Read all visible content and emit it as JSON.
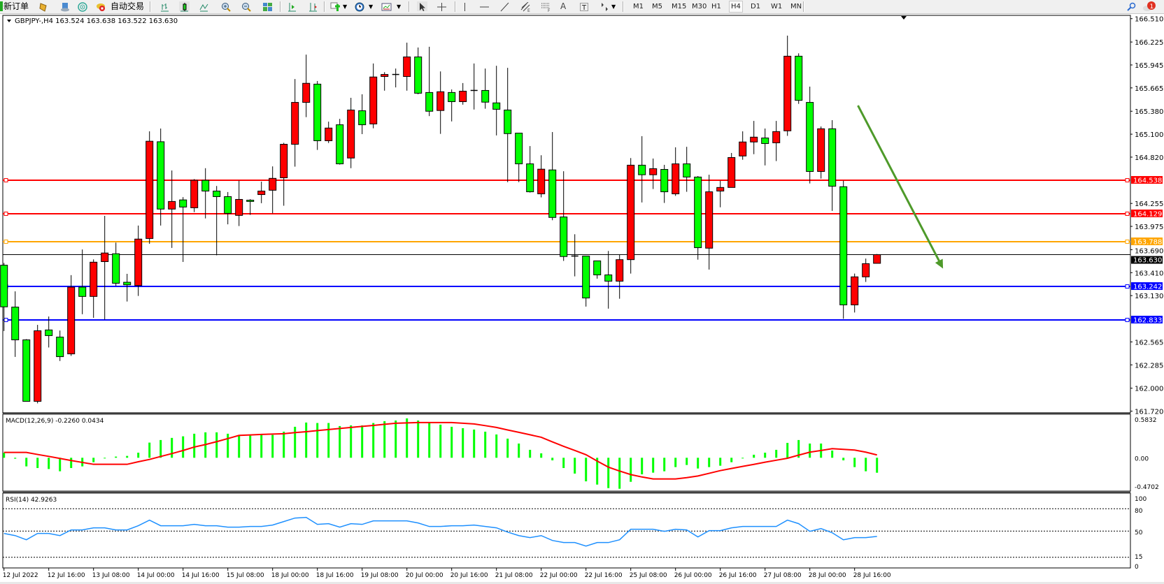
{
  "toolbar": {
    "new_order": "新订单",
    "auto_trading": "自动交易",
    "icons": [
      "market-watch-icon",
      "data-window-icon",
      "navigator-icon",
      "auto-trading-icon",
      "bar-chart-icon",
      "candlestick-icon",
      "line-chart-icon",
      "zoom-in-icon",
      "zoom-out-icon",
      "tile-windows-icon",
      "auto-scroll-icon",
      "chart-shift-icon",
      "indicators-icon",
      "periods-icon",
      "templates-icon",
      "cursor-icon",
      "crosshair-icon",
      "vertical-line-icon",
      "horizontal-line-icon",
      "trendline-icon",
      "channel-icon",
      "fibonacci-icon",
      "text-icon",
      "label-icon",
      "arrows-icon",
      "search-icon",
      "notification-icon"
    ],
    "periods": [
      "M1",
      "M5",
      "M15",
      "M30",
      "H1",
      "H4",
      "D1",
      "W1",
      "MN"
    ],
    "selected_period": "H4",
    "notification_count": "1"
  },
  "chart_data": {
    "type": "candlestick",
    "symbol_header": "GBPJPY-,H4  163.524 163.638 163.522 163.630",
    "ylim": [
      161.72,
      166.51
    ],
    "y_ticks": [
      "166.510",
      "166.225",
      "165.945",
      "165.665",
      "165.380",
      "165.100",
      "164.820",
      "164.255",
      "163.975",
      "163.690",
      "163.410",
      "163.130",
      "162.565",
      "162.285",
      "162.000",
      "161.720"
    ],
    "x_ticks": [
      "12 Jul 2022",
      "12 Jul 16:00",
      "13 Jul 08:00",
      "14 Jul 00:00",
      "14 Jul 16:00",
      "15 Jul 08:00",
      "18 Jul 00:00",
      "18 Jul 16:00",
      "19 Jul 08:00",
      "20 Jul 00:00",
      "20 Jul 16:00",
      "21 Jul 08:00",
      "22 Jul 00:00",
      "22 Jul 16:00",
      "25 Jul 08:00",
      "26 Jul 00:00",
      "26 Jul 16:00",
      "27 Jul 08:00",
      "28 Jul 00:00",
      "28 Jul 16:00"
    ],
    "candle_fields": [
      "open",
      "high",
      "low",
      "close"
    ],
    "candles": [
      [
        163.501,
        163.529,
        162.698,
        162.993
      ],
      [
        162.99,
        163.182,
        162.382,
        162.59
      ],
      [
        162.59,
        162.599,
        161.84,
        161.84
      ],
      [
        161.84,
        162.773,
        161.815,
        162.701
      ],
      [
        162.711,
        162.875,
        162.497,
        162.642
      ],
      [
        162.624,
        162.704,
        162.332,
        162.385
      ],
      [
        162.419,
        163.38,
        162.394,
        163.234
      ],
      [
        163.234,
        163.693,
        162.903,
        163.12
      ],
      [
        163.12,
        163.572,
        162.859,
        163.538
      ],
      [
        163.545,
        164.103,
        162.838,
        163.65
      ],
      [
        163.641,
        163.777,
        163.25,
        163.281
      ],
      [
        163.293,
        163.396,
        163.058,
        163.262
      ],
      [
        163.253,
        163.985,
        163.126,
        163.82
      ],
      [
        163.827,
        165.135,
        163.762,
        165.014
      ],
      [
        165.008,
        165.169,
        163.985,
        164.186
      ],
      [
        164.186,
        164.657,
        163.712,
        164.279
      ],
      [
        164.298,
        164.332,
        163.541,
        164.211
      ],
      [
        164.202,
        164.552,
        164.149,
        164.537
      ],
      [
        164.537,
        164.685,
        164.072,
        164.406
      ],
      [
        164.406,
        164.468,
        163.622,
        164.338
      ],
      [
        164.338,
        164.394,
        164.0,
        164.134
      ],
      [
        164.109,
        164.533,
        163.979,
        164.304
      ],
      [
        164.295,
        164.307,
        164.115,
        164.279
      ],
      [
        164.363,
        164.521,
        164.258,
        164.406
      ],
      [
        164.416,
        164.707,
        164.134,
        164.561
      ],
      [
        164.568,
        164.995,
        164.227,
        164.977
      ],
      [
        164.977,
        165.773,
        164.704,
        165.488
      ],
      [
        165.488,
        166.071,
        165.308,
        165.721
      ],
      [
        165.711,
        165.749,
        164.908,
        165.02
      ],
      [
        165.02,
        165.253,
        164.992,
        165.175
      ],
      [
        165.215,
        165.287,
        164.729,
        164.738
      ],
      [
        164.809,
        165.544,
        164.685,
        165.395
      ],
      [
        165.386,
        165.587,
        165.101,
        165.215
      ],
      [
        165.225,
        165.963,
        165.172,
        165.798
      ],
      [
        165.804,
        165.857,
        165.631,
        165.829
      ],
      [
        165.829,
        165.901,
        165.671,
        165.829
      ],
      [
        165.804,
        166.217,
        165.631,
        166.043
      ],
      [
        166.043,
        166.158,
        165.587,
        165.6
      ],
      [
        165.609,
        166.167,
        165.321,
        165.38
      ],
      [
        165.389,
        165.866,
        165.104,
        165.618
      ],
      [
        165.609,
        165.646,
        165.256,
        165.497
      ],
      [
        165.497,
        165.724,
        165.46,
        165.625
      ],
      [
        165.634,
        165.963,
        165.401,
        165.634
      ],
      [
        165.634,
        165.901,
        165.411,
        165.491
      ],
      [
        165.482,
        165.935,
        165.085,
        165.404
      ],
      [
        165.395,
        165.91,
        164.515,
        165.107
      ],
      [
        165.113,
        165.113,
        164.515,
        164.738
      ],
      [
        164.738,
        164.955,
        164.388,
        164.397
      ],
      [
        164.372,
        164.843,
        164.329,
        164.673
      ],
      [
        164.664,
        165.126,
        164.05,
        164.084
      ],
      [
        164.09,
        164.648,
        163.554,
        163.607
      ],
      [
        163.613,
        163.879,
        163.365,
        163.613
      ],
      [
        163.613,
        163.613,
        162.996,
        163.101
      ],
      [
        163.554,
        163.554,
        163.337,
        163.383
      ],
      [
        163.383,
        163.675,
        162.971,
        163.306
      ],
      [
        163.306,
        163.628,
        163.092,
        163.569
      ],
      [
        163.569,
        164.809,
        163.399,
        164.722
      ],
      [
        164.722,
        165.076,
        164.267,
        164.605
      ],
      [
        164.605,
        164.803,
        164.431,
        164.679
      ],
      [
        164.67,
        164.726,
        164.261,
        164.397
      ],
      [
        164.372,
        164.94,
        164.347,
        164.738
      ],
      [
        164.738,
        164.946,
        164.397,
        164.577
      ],
      [
        164.577,
        164.589,
        163.569,
        163.715
      ],
      [
        163.709,
        164.605,
        163.448,
        164.397
      ],
      [
        164.406,
        164.533,
        164.208,
        164.45
      ],
      [
        164.45,
        164.871,
        164.45,
        164.815
      ],
      [
        164.834,
        165.135,
        164.788,
        165.005
      ],
      [
        165.005,
        165.262,
        164.856,
        165.064
      ],
      [
        165.054,
        165.169,
        164.719,
        164.986
      ],
      [
        164.995,
        165.262,
        164.772,
        165.132
      ],
      [
        165.141,
        166.303,
        165.079,
        166.052
      ],
      [
        166.052,
        166.087,
        165.47,
        165.513
      ],
      [
        165.488,
        165.68,
        164.499,
        164.645
      ],
      [
        164.645,
        165.194,
        164.558,
        165.166
      ],
      [
        165.166,
        165.271,
        164.164,
        164.465
      ],
      [
        164.459,
        164.533,
        162.847,
        163.017
      ],
      [
        163.017,
        163.399,
        162.924,
        163.359
      ],
      [
        163.359,
        163.582,
        163.297,
        163.52
      ],
      [
        163.524,
        163.638,
        163.522,
        163.63
      ]
    ],
    "bull_color": "#ff0000",
    "bear_color": "#00ff00",
    "price_lines": [
      {
        "price": "164.538",
        "color": "#ff0000"
      },
      {
        "price": "164.129",
        "color": "#ff0000"
      },
      {
        "price": "163.788",
        "color": "#ffa500"
      },
      {
        "price": "163.242",
        "color": "#0000ff"
      },
      {
        "price": "162.833",
        "color": "#0000ff"
      }
    ],
    "bid_line": {
      "price": "163.630",
      "color": "#000000"
    },
    "arrow": {
      "from_price": 165.45,
      "to_price": 163.46,
      "color": "#4e9a2a"
    },
    "macd": {
      "label": "MACD(12,26,9) -0.2260 0.0434",
      "y_ticks": [
        "0.5832",
        "0.00",
        "-0.4702"
      ],
      "ylim": [
        -0.4702,
        0.5832
      ],
      "hist_color": "#00ff00",
      "signal_color": "#ff0000",
      "histogram": [
        0.074,
        -0.014,
        -0.13,
        -0.155,
        -0.17,
        -0.204,
        -0.155,
        -0.13,
        -0.067,
        -0.005,
        0.018,
        0.028,
        0.077,
        0.229,
        0.268,
        0.3,
        0.324,
        0.363,
        0.384,
        0.384,
        0.363,
        0.345,
        0.334,
        0.345,
        0.345,
        0.394,
        0.468,
        0.532,
        0.525,
        0.525,
        0.479,
        0.489,
        0.489,
        0.525,
        0.553,
        0.563,
        0.595,
        0.563,
        0.535,
        0.5,
        0.468,
        0.447,
        0.426,
        0.394,
        0.352,
        0.289,
        0.215,
        0.12,
        0.067,
        -0.039,
        -0.155,
        -0.239,
        -0.356,
        -0.405,
        -0.458,
        -0.468,
        -0.363,
        -0.25,
        -0.225,
        -0.204,
        -0.141,
        -0.109,
        -0.162,
        -0.141,
        -0.12,
        -0.067,
        -0.004,
        0.046,
        0.077,
        0.12,
        0.225,
        0.268,
        0.215,
        0.215,
        0.109,
        -0.039,
        -0.141,
        -0.204,
        -0.226
      ],
      "signal": [
        0.081,
        0.081,
        0.081,
        0.05,
        0.021,
        -0.01,
        -0.042,
        -0.07,
        -0.099,
        -0.099,
        -0.099,
        -0.099,
        -0.06,
        -0.025,
        0.02,
        0.063,
        0.11,
        0.162,
        0.2,
        0.243,
        0.29,
        0.338,
        0.345,
        0.352,
        0.358,
        0.363,
        0.38,
        0.394,
        0.41,
        0.426,
        0.442,
        0.458,
        0.474,
        0.489,
        0.505,
        0.521,
        0.527,
        0.532,
        0.532,
        0.532,
        0.532,
        0.522,
        0.511,
        0.485,
        0.458,
        0.42,
        0.384,
        0.347,
        0.31,
        0.24,
        0.173,
        0.11,
        0.046,
        -0.05,
        -0.141,
        -0.2,
        -0.254,
        -0.29,
        -0.32,
        -0.32,
        -0.32,
        -0.3,
        -0.275,
        -0.235,
        -0.194,
        -0.162,
        -0.13,
        -0.1,
        -0.067,
        -0.037,
        -0.007,
        0.04,
        0.085,
        0.11,
        0.137,
        0.127,
        0.116,
        0.085,
        0.043
      ]
    },
    "rsi": {
      "label": "RSI(14) 42.9263",
      "y_ticks": [
        "100",
        "80",
        "50",
        "15",
        "0"
      ],
      "levels": [
        80,
        50,
        15
      ],
      "ylim": [
        0,
        100
      ],
      "color": "#1e90ff",
      "values": [
        46.9,
        44,
        38.4,
        46.9,
        46.9,
        44,
        51.6,
        51.6,
        54.4,
        54.4,
        51.6,
        51.6,
        57.2,
        64.7,
        57.2,
        57.2,
        57.2,
        59,
        57.2,
        57.2,
        55.3,
        55.3,
        56.2,
        56.2,
        58.1,
        62.8,
        67.5,
        68.4,
        59,
        60,
        55.3,
        60,
        59,
        63.7,
        63.7,
        63.7,
        63.7,
        60.9,
        56.2,
        56.2,
        57.2,
        57.2,
        58.1,
        56.2,
        54.4,
        48.7,
        44,
        41.3,
        44,
        37.5,
        34.7,
        34.7,
        30,
        34.7,
        34.7,
        38.4,
        52.5,
        52.5,
        52.5,
        49.7,
        52.5,
        51.6,
        42.2,
        50.6,
        50.6,
        54.4,
        56.2,
        56.2,
        56.2,
        56.2,
        64.7,
        60,
        49.7,
        53.4,
        47.8,
        38.4,
        41.3,
        41.3,
        42.9
      ]
    }
  }
}
